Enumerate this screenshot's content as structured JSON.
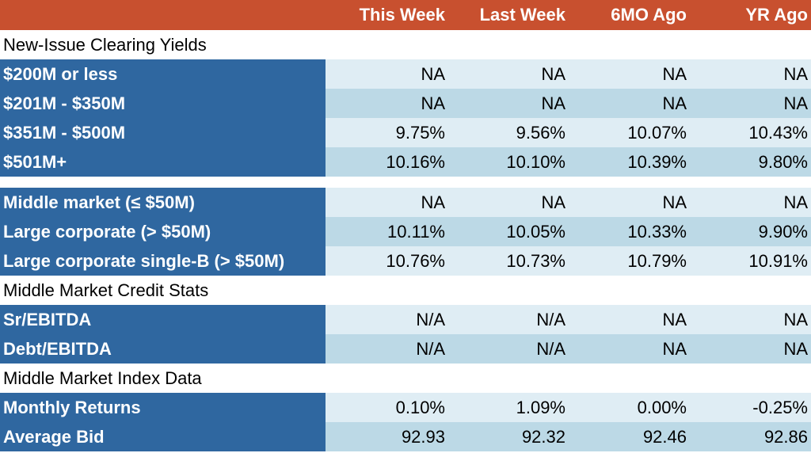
{
  "header": [
    "",
    "This Week",
    "Last Week",
    "6MO Ago",
    "YR Ago"
  ],
  "rows": [
    {
      "kind": "section",
      "label": "New-Issue Clearing Yields"
    },
    {
      "kind": "data",
      "label": "$200M or less",
      "values": [
        "NA",
        "NA",
        "NA",
        "NA"
      ]
    },
    {
      "kind": "data",
      "label": "$201M - $350M",
      "values": [
        "NA",
        "NA",
        "NA",
        "NA"
      ]
    },
    {
      "kind": "data",
      "label": "$351M - $500M",
      "values": [
        "9.75%",
        "9.56%",
        "10.07%",
        "10.43%"
      ]
    },
    {
      "kind": "data",
      "label": "$501M+",
      "values": [
        "10.16%",
        "10.10%",
        "10.39%",
        "9.80%"
      ]
    },
    {
      "kind": "spacer"
    },
    {
      "kind": "data",
      "label": "Middle market (≤ $50M)",
      "values": [
        "NA",
        "NA",
        "NA",
        "NA"
      ]
    },
    {
      "kind": "data",
      "label": "Large corporate (> $50M)",
      "values": [
        "10.11%",
        "10.05%",
        "10.33%",
        "9.90%"
      ]
    },
    {
      "kind": "data",
      "label": "Large corporate single-B (> $50M)",
      "values": [
        "10.76%",
        "10.73%",
        "10.79%",
        "10.91%"
      ]
    },
    {
      "kind": "section",
      "label": "Middle Market Credit Stats"
    },
    {
      "kind": "data",
      "label": "Sr/EBITDA",
      "values": [
        "N/A",
        "N/A",
        "NA",
        "NA"
      ]
    },
    {
      "kind": "data",
      "label": "Debt/EBITDA",
      "values": [
        "N/A",
        "N/A",
        "NA",
        "NA"
      ]
    },
    {
      "kind": "section",
      "label": "Middle Market Index Data"
    },
    {
      "kind": "data",
      "label": "Monthly Returns",
      "values": [
        "0.10%",
        "1.09%",
        "0.00%",
        "-0.25%"
      ]
    },
    {
      "kind": "data",
      "label": "Average Bid",
      "values": [
        "92.93",
        "92.32",
        "92.46",
        "92.86"
      ]
    }
  ]
}
